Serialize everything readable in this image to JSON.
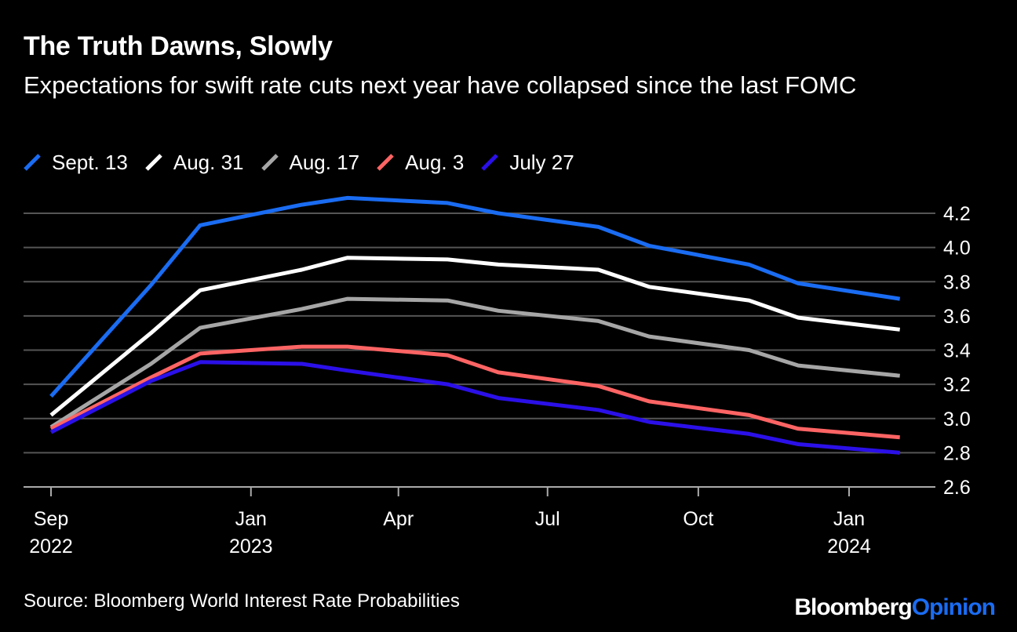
{
  "header": {
    "title": "The Truth Dawns, Slowly",
    "subtitle": "Expectations for swift rate cuts next year have collapsed since the last FOMC"
  },
  "footer": {
    "source": "Source: Bloomberg World Interest Rate Probabilities",
    "logo_part1": "Bloomberg",
    "logo_part2": "Opinion"
  },
  "colors": {
    "background": "#000000",
    "grid": "#555555",
    "axis": "#aaaaaa",
    "brand_accent": "#1a6cf2"
  },
  "chart_data": {
    "type": "line",
    "title": "The Truth Dawns, Slowly",
    "subtitle": "Expectations for swift rate cuts next year have collapsed since the last FOMC",
    "xlabel": "",
    "ylabel": "",
    "x": [
      "2022-09",
      "2022-11",
      "2022-12",
      "2023-02",
      "2023-03",
      "2023-05",
      "2023-06",
      "2023-08",
      "2023-09",
      "2023-11",
      "2023-12",
      "2024-02"
    ],
    "x_ticks": [
      {
        "date": "2022-09",
        "line1": "Sep",
        "line2": "2022"
      },
      {
        "date": "2023-01",
        "line1": "Jan",
        "line2": "2023"
      },
      {
        "date": "2023-04",
        "line1": "Apr",
        "line2": ""
      },
      {
        "date": "2023-07",
        "line1": "Jul",
        "line2": ""
      },
      {
        "date": "2023-10",
        "line1": "Oct",
        "line2": ""
      },
      {
        "date": "2024-01",
        "line1": "Jan",
        "line2": "2024"
      }
    ],
    "y_ticks": [
      "4.2",
      "4.0",
      "3.8",
      "3.6",
      "3.4",
      "3.2",
      "3.0",
      "2.8",
      "2.6"
    ],
    "ylim": [
      2.6,
      4.2
    ],
    "y_axis_side": "right",
    "grid": true,
    "legend_position": "top-left",
    "series": [
      {
        "name": "Sept. 13",
        "color": "#1a6cf2",
        "values": [
          3.13,
          3.78,
          4.13,
          4.25,
          4.29,
          4.26,
          4.2,
          4.12,
          4.01,
          3.9,
          3.79,
          3.7
        ]
      },
      {
        "name": "Aug. 31",
        "color": "#ffffff",
        "values": [
          3.02,
          3.5,
          3.75,
          3.87,
          3.94,
          3.93,
          3.9,
          3.87,
          3.77,
          3.69,
          3.59,
          3.52
        ]
      },
      {
        "name": "Aug. 17",
        "color": "#a6a6a6",
        "values": [
          2.95,
          3.32,
          3.53,
          3.64,
          3.7,
          3.69,
          3.63,
          3.57,
          3.48,
          3.4,
          3.31,
          3.25
        ]
      },
      {
        "name": "Aug. 3",
        "color": "#ff6464",
        "values": [
          2.94,
          3.24,
          3.38,
          3.42,
          3.42,
          3.37,
          3.27,
          3.19,
          3.1,
          3.02,
          2.94,
          2.89
        ]
      },
      {
        "name": "July 27",
        "color": "#2b10e8",
        "values": [
          2.92,
          3.22,
          3.33,
          3.32,
          3.28,
          3.2,
          3.12,
          3.05,
          2.98,
          2.91,
          2.85,
          2.8
        ]
      }
    ]
  }
}
